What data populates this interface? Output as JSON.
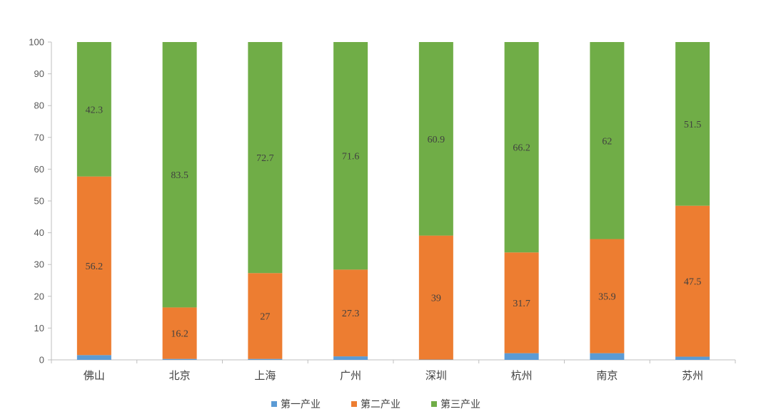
{
  "chart_data": {
    "type": "bar",
    "stacked": true,
    "title": "",
    "xlabel": "",
    "ylabel": "",
    "ylim": [
      0,
      100
    ],
    "yticks": [
      "0",
      "10",
      "20",
      "30",
      "40",
      "50",
      "60",
      "70",
      "80",
      "90",
      "100"
    ],
    "grid": false,
    "legend_position": "bottom",
    "categories": [
      "佛山",
      "北京",
      "上海",
      "广州",
      "深圳",
      "杭州",
      "南京",
      "苏州"
    ],
    "series": [
      {
        "name": "第一产业",
        "color": "#5b9bd5",
        "values": [
          1.5,
          0.3,
          0.3,
          1.1,
          0.1,
          2.1,
          2.1,
          1.0
        ],
        "labels": [
          "",
          "",
          "",
          "",
          "",
          "",
          "",
          ""
        ]
      },
      {
        "name": "第二产业",
        "color": "#ed7d31",
        "values": [
          56.2,
          16.2,
          27,
          27.3,
          39,
          31.7,
          35.9,
          47.5
        ],
        "labels": [
          "56.2",
          "16.2",
          "27",
          "27.3",
          "39",
          "31.7",
          "35.9",
          "47.5"
        ]
      },
      {
        "name": "第三产业",
        "color": "#70ad47",
        "values": [
          42.3,
          83.5,
          72.7,
          71.6,
          60.9,
          66.2,
          62,
          51.5
        ],
        "labels": [
          "42.3",
          "83.5",
          "72.7",
          "71.6",
          "60.9",
          "66.2",
          "62",
          "51.5"
        ]
      }
    ]
  }
}
